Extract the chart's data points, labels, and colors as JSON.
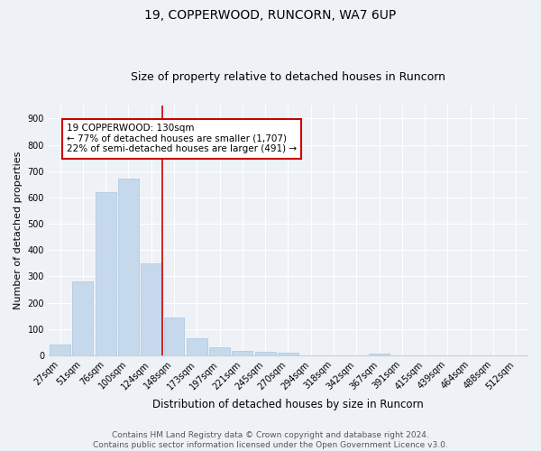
{
  "title1": "19, COPPERWOOD, RUNCORN, WA7 6UP",
  "title2": "Size of property relative to detached houses in Runcorn",
  "xlabel": "Distribution of detached houses by size in Runcorn",
  "ylabel": "Number of detached properties",
  "categories": [
    "27sqm",
    "51sqm",
    "76sqm",
    "100sqm",
    "124sqm",
    "148sqm",
    "173sqm",
    "197sqm",
    "221sqm",
    "245sqm",
    "270sqm",
    "294sqm",
    "318sqm",
    "342sqm",
    "367sqm",
    "391sqm",
    "415sqm",
    "439sqm",
    "464sqm",
    "488sqm",
    "512sqm"
  ],
  "values": [
    40,
    280,
    620,
    670,
    350,
    145,
    65,
    30,
    18,
    12,
    10,
    0,
    0,
    0,
    8,
    0,
    0,
    0,
    0,
    0,
    0
  ],
  "bar_color": "#c6d9ec",
  "bar_edge_color": "#aac4dc",
  "vline_x": 4.5,
  "vline_color": "#cc0000",
  "annotation_text": "19 COPPERWOOD: 130sqm\n← 77% of detached houses are smaller (1,707)\n22% of semi-detached houses are larger (491) →",
  "annotation_box_color": "#ffffff",
  "annotation_box_edge": "#cc0000",
  "ylim": [
    0,
    950
  ],
  "yticks": [
    0,
    100,
    200,
    300,
    400,
    500,
    600,
    700,
    800,
    900
  ],
  "bg_color": "#eef2f7",
  "plot_bg_color": "#eef2f7",
  "footer_text": "Contains HM Land Registry data © Crown copyright and database right 2024.\nContains public sector information licensed under the Open Government Licence v3.0.",
  "title1_fontsize": 10,
  "title2_fontsize": 9,
  "xlabel_fontsize": 8.5,
  "ylabel_fontsize": 8,
  "tick_fontsize": 7,
  "annotation_fontsize": 7.5,
  "footer_fontsize": 6.5
}
